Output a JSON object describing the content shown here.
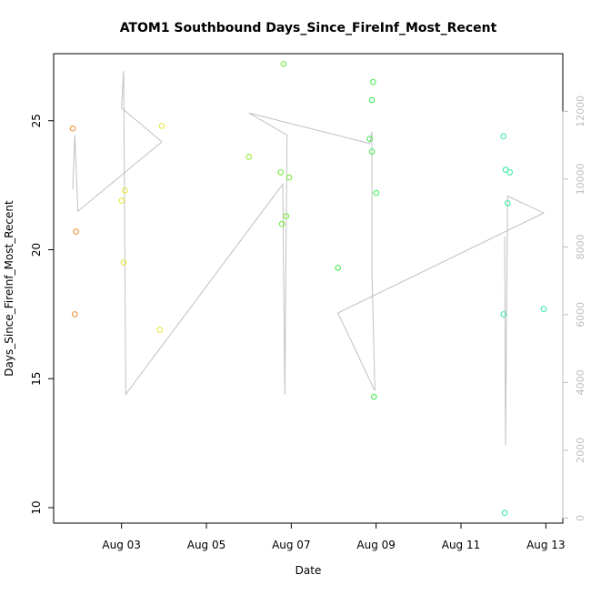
{
  "chart_data": {
    "type": "scatter",
    "title": "ATOM1 Southbound Days_Since_FireInf_Most_Recent",
    "xlabel": "Date",
    "ylabel": "Days_Since_FireInf_Most_Recent",
    "x_ticks": [
      "Aug 03",
      "Aug 05",
      "Aug 07",
      "Aug 09",
      "Aug 11",
      "Aug 13"
    ],
    "x_tick_days": [
      3,
      5,
      7,
      9,
      11,
      13
    ],
    "xlim_days": [
      1.4,
      13.4
    ],
    "y_ticks": [
      10,
      15,
      20,
      25
    ],
    "ylim": [
      9.4,
      27.6
    ],
    "y2_ticks": [
      0,
      2000,
      4000,
      6000,
      8000,
      10000,
      12000
    ],
    "y2lim": [
      -150,
      13700
    ],
    "grid": false,
    "legend": "none",
    "colors": {
      "line": "#c0c0c0",
      "axis": "#000000",
      "right_axis": "#bdbdbd"
    },
    "points": [
      {
        "day": 1.85,
        "y": 24.7,
        "color": "#e88a2a"
      },
      {
        "day": 1.9,
        "y": 17.5,
        "color": "#e88a2a"
      },
      {
        "day": 1.93,
        "y": 20.7,
        "color": "#e88a2a"
      },
      {
        "day": 3.0,
        "y": 21.9,
        "color": "#e6e633"
      },
      {
        "day": 3.08,
        "y": 22.3,
        "color": "#e6e633"
      },
      {
        "day": 3.05,
        "y": 19.5,
        "color": "#e6e633"
      },
      {
        "day": 3.95,
        "y": 24.8,
        "color": "#e6e633"
      },
      {
        "day": 3.9,
        "y": 16.9,
        "color": "#e6e633"
      },
      {
        "day": 6.0,
        "y": 23.6,
        "color": "#8ee82c"
      },
      {
        "day": 6.75,
        "y": 23.0,
        "color": "#6ee82c"
      },
      {
        "day": 6.82,
        "y": 27.2,
        "color": "#6ee82c"
      },
      {
        "day": 6.88,
        "y": 21.3,
        "color": "#6ee82c"
      },
      {
        "day": 6.78,
        "y": 21.0,
        "color": "#6ee82c"
      },
      {
        "day": 6.95,
        "y": 22.8,
        "color": "#6ee82c"
      },
      {
        "day": 8.1,
        "y": 19.3,
        "color": "#3ee83c"
      },
      {
        "day": 8.85,
        "y": 24.3,
        "color": "#3ee84a"
      },
      {
        "day": 8.9,
        "y": 25.8,
        "color": "#3ee84a"
      },
      {
        "day": 8.93,
        "y": 26.5,
        "color": "#3ee84a"
      },
      {
        "day": 8.9,
        "y": 23.8,
        "color": "#3ee84a"
      },
      {
        "day": 9.0,
        "y": 22.2,
        "color": "#3ee84a"
      },
      {
        "day": 8.95,
        "y": 14.3,
        "color": "#3ee84a"
      },
      {
        "day": 12.0,
        "y": 24.4,
        "color": "#2ee8a0"
      },
      {
        "day": 12.05,
        "y": 23.1,
        "color": "#2ee8a0"
      },
      {
        "day": 12.15,
        "y": 23.0,
        "color": "#2ee8a0"
      },
      {
        "day": 12.1,
        "y": 21.8,
        "color": "#2ee8a0"
      },
      {
        "day": 12.0,
        "y": 17.5,
        "color": "#2ee8a0"
      },
      {
        "day": 12.03,
        "y": 9.8,
        "color": "#2ee8a0"
      },
      {
        "day": 12.95,
        "y": 17.7,
        "color": "#2ee8a0"
      }
    ],
    "line_series": {
      "axis": "right",
      "points": [
        [
          1.85,
          9700
        ],
        [
          1.9,
          11300
        ],
        [
          1.97,
          9050
        ],
        [
          3.95,
          11100
        ],
        [
          3.0,
          12100
        ],
        [
          3.05,
          13200
        ],
        [
          3.1,
          3650
        ],
        [
          6.8,
          9850
        ],
        [
          6.85,
          3650
        ],
        [
          6.9,
          11300
        ],
        [
          6.0,
          11950
        ],
        [
          8.85,
          11050
        ],
        [
          8.9,
          11400
        ],
        [
          8.9,
          7350
        ],
        [
          8.97,
          3750
        ],
        [
          8.1,
          6050
        ],
        [
          12.95,
          9000
        ],
        [
          12.1,
          9500
        ],
        [
          12.05,
          2150
        ],
        [
          12.03,
          8300
        ]
      ]
    }
  }
}
